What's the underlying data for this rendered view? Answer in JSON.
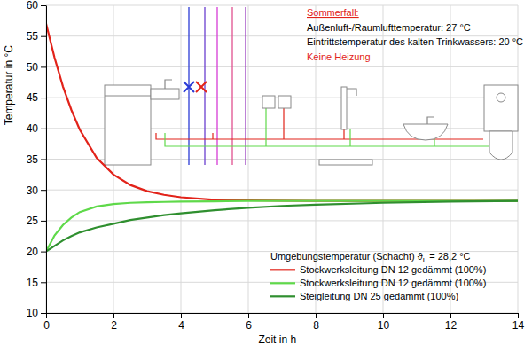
{
  "chart_data": {
    "type": "line",
    "x_label": "Zeit  in h",
    "y_label": "Temperatur in °C",
    "x": [
      0,
      0.25,
      0.5,
      0.75,
      1,
      1.5,
      2,
      2.5,
      3,
      3.5,
      4,
      5,
      6,
      7,
      8,
      10,
      12,
      14
    ],
    "series": [
      {
        "name": "Stockwerksleitung DN 12 gedämmt (100%)",
        "color": "#e2231a",
        "values": [
          57,
          51.5,
          46.8,
          43,
          39.8,
          35.2,
          32.5,
          30.8,
          29.8,
          29.2,
          28.8,
          28.4,
          28.3,
          28.25,
          28.2,
          28.2,
          28.2,
          28.2
        ]
      },
      {
        "name": "Stockwerksleitung DN 12 gedämmt (100%)",
        "color": "#5fd94a",
        "values": [
          20,
          22.6,
          24.3,
          25.5,
          26.4,
          27.3,
          27.7,
          27.9,
          28.0,
          28.05,
          28.1,
          28.15,
          28.2,
          28.2,
          28.2,
          28.2,
          28.2,
          28.2
        ]
      },
      {
        "name": "Steigleitung DN 25 gedämmt (100%)",
        "color": "#2f8f2f",
        "values": [
          20,
          20.9,
          21.8,
          22.5,
          23.1,
          23.9,
          24.5,
          25.1,
          25.5,
          25.9,
          26.2,
          26.7,
          27.1,
          27.4,
          27.6,
          27.9,
          28.1,
          28.2
        ]
      }
    ],
    "xlim": [
      0,
      14
    ],
    "xticks": [
      0,
      2,
      4,
      6,
      8,
      10,
      12,
      14
    ],
    "ylim": [
      10,
      60
    ],
    "yticks": [
      10,
      15,
      20,
      25,
      30,
      35,
      40,
      45,
      50,
      55,
      60
    ],
    "grid": true,
    "legend": "lower right",
    "legend_title": {
      "text": "Umgebungstemperatur (Schacht) ϑ",
      "subscript": "L",
      "suffix": " = 28,2 °C"
    },
    "annotations": [
      {
        "text": "Sommerfall:",
        "color": "#e2231a"
      },
      {
        "text": "Außenluft-/Raumlufttemperatur:  27 °C",
        "color": "#000000"
      },
      {
        "text": "Eintrittstemperatur des kalten Trinkwassers: 20 °C",
        "color": "#000000"
      },
      {
        "text": "Keine Heizung",
        "color": "#e2231a"
      }
    ]
  }
}
